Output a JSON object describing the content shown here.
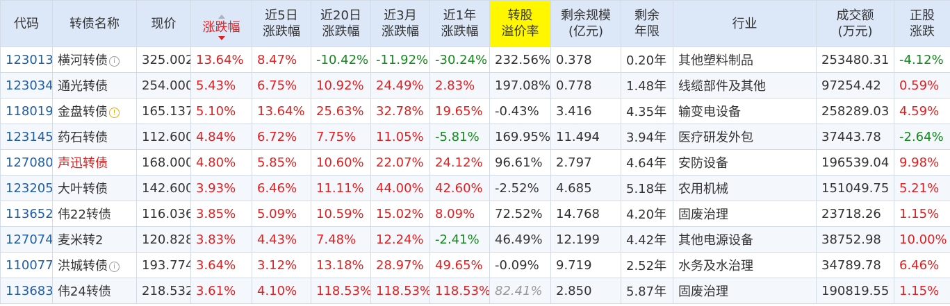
{
  "headers": {
    "code": "代码",
    "name": "转债名称",
    "price": "现价",
    "chg": "涨跌幅",
    "chg5d": [
      "近5日",
      "涨跌幅"
    ],
    "chg20d": [
      "近20日",
      "涨跌幅"
    ],
    "chg3m": [
      "近3月",
      "涨跌幅"
    ],
    "chg1y": [
      "近1年",
      "涨跌幅"
    ],
    "premium": [
      "转股",
      "溢价率"
    ],
    "scale": [
      "剩余规模",
      "(亿元)"
    ],
    "years": [
      "剩余",
      "年限"
    ],
    "industry": "行业",
    "volume": [
      "成交额",
      "(万元)"
    ],
    "stock_chg": [
      "正股",
      "涨跌"
    ]
  },
  "sort_icon": "sort-desc-icon",
  "colors": {
    "up": "#e02020",
    "down": "#138a1c",
    "code": "#1f5ea8",
    "header_bg": "#dce7f7",
    "highlight": "#fff700"
  },
  "rows": [
    {
      "code": "123013",
      "name": "横河转债",
      "icon": "info",
      "name_red": false,
      "price": "325.002",
      "chg": "13.64%",
      "chg5d": "8.47%",
      "chg20d": "-10.42%",
      "chg3m": "-11.92%",
      "chg1y": "-30.24%",
      "premium": "232.56%",
      "scale": "0.378",
      "years": "0.20年",
      "industry": "其他塑料制品",
      "volume": "253480.31",
      "stock_chg": "-4.12%"
    },
    {
      "code": "123034",
      "name": "通光转债",
      "icon": "",
      "name_red": false,
      "price": "254.000",
      "chg": "5.43%",
      "chg5d": "6.75%",
      "chg20d": "10.92%",
      "chg3m": "24.49%",
      "chg1y": "2.83%",
      "premium": "197.08%",
      "scale": "0.778",
      "years": "1.48年",
      "industry": "线缆部件及其他",
      "volume": "97254.42",
      "stock_chg": "0.59%"
    },
    {
      "code": "118019",
      "name": "金盘转债",
      "icon": "warn",
      "name_red": false,
      "price": "165.137",
      "chg": "5.10%",
      "chg5d": "13.64%",
      "chg20d": "25.63%",
      "chg3m": "32.78%",
      "chg1y": "19.65%",
      "premium": "-0.43%",
      "scale": "3.416",
      "years": "4.35年",
      "industry": "输变电设备",
      "volume": "258289.03",
      "stock_chg": "4.59%"
    },
    {
      "code": "123145",
      "name": "药石转债",
      "icon": "",
      "name_red": false,
      "price": "112.600",
      "chg": "4.84%",
      "chg5d": "6.72%",
      "chg20d": "7.75%",
      "chg3m": "11.05%",
      "chg1y": "-5.81%",
      "premium": "169.95%",
      "scale": "11.494",
      "years": "3.94年",
      "industry": "医疗研发外包",
      "volume": "37443.78",
      "stock_chg": "-2.64%"
    },
    {
      "code": "127080",
      "name": "声迅转债",
      "icon": "",
      "name_red": true,
      "price": "168.000",
      "chg": "4.80%",
      "chg5d": "5.85%",
      "chg20d": "10.60%",
      "chg3m": "22.07%",
      "chg1y": "24.12%",
      "premium": "96.61%",
      "scale": "2.797",
      "years": "4.64年",
      "industry": "安防设备",
      "volume": "196539.04",
      "stock_chg": "9.98%"
    },
    {
      "code": "123205",
      "name": "大叶转债",
      "icon": "",
      "name_red": false,
      "price": "142.600",
      "chg": "3.93%",
      "chg5d": "6.46%",
      "chg20d": "11.11%",
      "chg3m": "44.00%",
      "chg1y": "42.60%",
      "premium": "-2.52%",
      "scale": "4.685",
      "years": "5.18年",
      "industry": "农用机械",
      "volume": "151049.75",
      "stock_chg": "5.21%"
    },
    {
      "code": "113652",
      "name": "伟22转债",
      "icon": "",
      "name_red": false,
      "price": "116.036",
      "chg": "3.85%",
      "chg5d": "5.09%",
      "chg20d": "10.59%",
      "chg3m": "15.02%",
      "chg1y": "8.09%",
      "premium": "72.52%",
      "scale": "14.768",
      "years": "4.20年",
      "industry": "固废治理",
      "volume": "23718.26",
      "stock_chg": "1.15%"
    },
    {
      "code": "127074",
      "name": "麦米转2",
      "icon": "",
      "name_red": false,
      "price": "120.828",
      "chg": "3.83%",
      "chg5d": "4.43%",
      "chg20d": "7.48%",
      "chg3m": "12.24%",
      "chg1y": "-2.41%",
      "premium": "46.49%",
      "scale": "12.199",
      "years": "4.42年",
      "industry": "其他电源设备",
      "volume": "38752.98",
      "stock_chg": "10.00%"
    },
    {
      "code": "110077",
      "name": "洪城转债",
      "icon": "info",
      "name_red": false,
      "price": "193.774",
      "chg": "3.64%",
      "chg5d": "3.12%",
      "chg20d": "13.18%",
      "chg3m": "28.97%",
      "chg1y": "49.65%",
      "premium": "-0.09%",
      "scale": "9.719",
      "years": "2.52年",
      "industry": "水务及水治理",
      "volume": "34789.78",
      "stock_chg": "6.46%"
    },
    {
      "code": "113683",
      "name": "伟24转债",
      "icon": "",
      "name_red": false,
      "price": "218.532",
      "chg": "3.61%",
      "chg5d": "4.10%",
      "chg20d": "118.53%",
      "chg3m": "118.53%",
      "chg1y": "118.53%",
      "premium": "82.41%",
      "premium_gray": true,
      "scale": "2.850",
      "years": "5.87年",
      "industry": "固废治理",
      "volume": "190819.55",
      "stock_chg": "1.15%"
    }
  ]
}
